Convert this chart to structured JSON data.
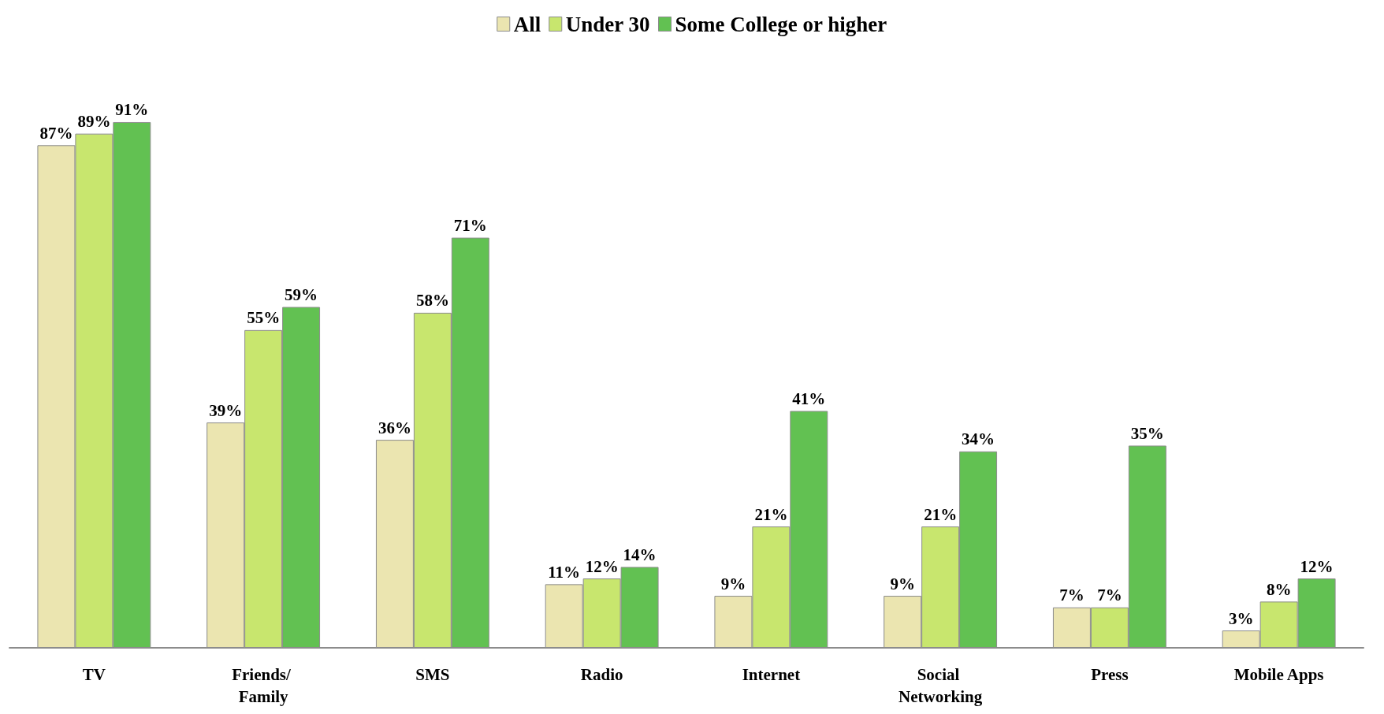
{
  "chart_data": {
    "type": "bar",
    "categories": [
      "TV",
      "Friends/ Family",
      "SMS",
      "Radio",
      "Internet",
      "Social Networking",
      "Press",
      "Mobile Apps"
    ],
    "series": [
      {
        "name": "All",
        "color": "#ebe5b0",
        "values": [
          87,
          39,
          36,
          11,
          9,
          9,
          7,
          3
        ],
        "value_labels": [
          "87%",
          "39%",
          "36%",
          "11%",
          "9%",
          "9%",
          "7%",
          "3%"
        ]
      },
      {
        "name": "Under 30",
        "color": "#c8e66e",
        "values": [
          89,
          55,
          58,
          12,
          21,
          21,
          7,
          8
        ],
        "value_labels": [
          "89%",
          "55%",
          "58%",
          "12%",
          "21%",
          "21%",
          "7%",
          "8%"
        ]
      },
      {
        "name": "Some College or higher",
        "color": "#62c152",
        "values": [
          91,
          59,
          71,
          14,
          41,
          34,
          35,
          12
        ],
        "value_labels": [
          "91%",
          "59%",
          "71%",
          "14%",
          "41%",
          "34%",
          "35%",
          "12%"
        ]
      }
    ],
    "legend": "top",
    "grid": false
  }
}
